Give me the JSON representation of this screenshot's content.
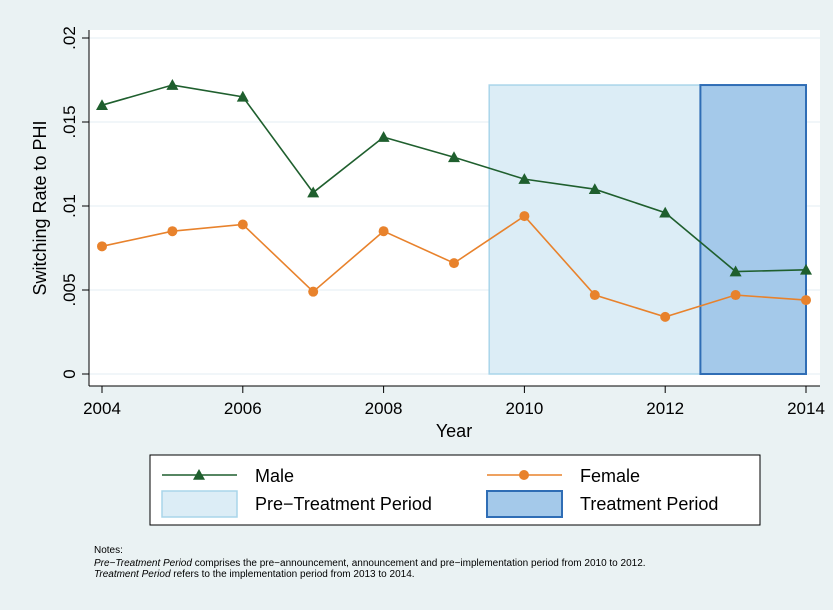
{
  "chart_data": {
    "type": "line",
    "x_label": "Year",
    "y_label": "Switching Rate to PHI",
    "x": [
      2004,
      2005,
      2006,
      2007,
      2008,
      2009,
      2010,
      2011,
      2012,
      2013,
      2014
    ],
    "series": [
      {
        "name": "Male",
        "color": "#1f5f2e",
        "marker": "triangle",
        "values": [
          0.016,
          0.0172,
          0.0165,
          0.0108,
          0.0141,
          0.0129,
          0.0116,
          0.011,
          0.0096,
          0.0061,
          0.0062
        ]
      },
      {
        "name": "Female",
        "color": "#e8822c",
        "marker": "circle",
        "values": [
          0.0076,
          0.0085,
          0.0089,
          0.0049,
          0.0085,
          0.0066,
          0.0094,
          0.0047,
          0.0034,
          0.0047,
          0.0044
        ]
      }
    ],
    "bands": [
      {
        "name": "Pre−Treatment Period",
        "x": [
          2009.5,
          2012.5
        ],
        "top": 0.0172,
        "fill": "#dcedf6",
        "stroke": "#a9d5ea"
      },
      {
        "name": "Treatment Period",
        "x": [
          2012.5,
          2014
        ],
        "top": 0.0172,
        "fill": "#a4c9ea",
        "stroke": "#2f6db5"
      }
    ],
    "xlim": [
      2004,
      2014
    ],
    "xticks": [
      2004,
      2006,
      2008,
      2010,
      2012,
      2014
    ],
    "ylim": [
      0,
      0.02
    ],
    "yticks": [
      0,
      {
        "value": 0.005,
        "label": ".005"
      },
      {
        "value": 0.01,
        "label": ".01"
      },
      {
        "value": 0.015,
        "label": ".015"
      },
      {
        "value": 0.02,
        "label": ".02"
      }
    ],
    "grid": true,
    "notes": {
      "heading": "Notes:",
      "lines": [
        {
          "italic": "Pre−Treatment Period",
          "text": " comprises the pre−announcement, announcement and pre−implementation period from 2010 to 2012."
        },
        {
          "italic": "Treatment Period",
          "text": " refers to the implementation period from 2013 to 2014."
        }
      ]
    }
  }
}
